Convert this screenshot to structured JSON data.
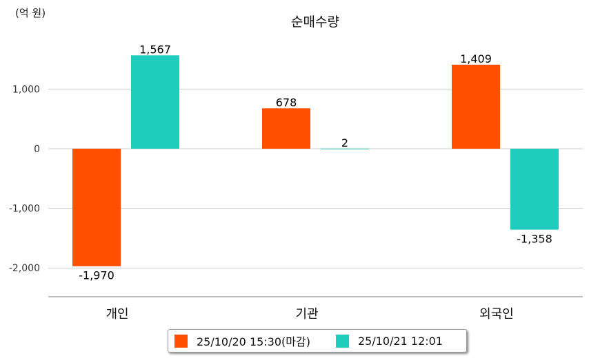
{
  "chart_data": {
    "type": "bar",
    "title": "순매수량",
    "unit_label": "(억 원)",
    "categories": [
      "개인",
      "기관",
      "외국인"
    ],
    "series": [
      {
        "name": "25/10/20 15:30(마감)",
        "color": "#FF5000",
        "values": [
          -1970,
          678,
          1409
        ],
        "labels": [
          "-1,970",
          "678",
          "1,409"
        ]
      },
      {
        "name": "25/10/21 12:01",
        "color": "#1ECDBC",
        "values": [
          1567,
          2,
          -1358
        ],
        "labels": [
          "1,567",
          "2",
          "-1,358"
        ]
      }
    ],
    "yticks": [
      1000,
      0,
      -1000,
      -2000
    ],
    "ytick_labels": [
      "1,000",
      "0",
      "-1,000",
      "-2,000"
    ],
    "ylim": [
      -2500,
      2000
    ],
    "legend_position": "bottom",
    "grid": true
  }
}
